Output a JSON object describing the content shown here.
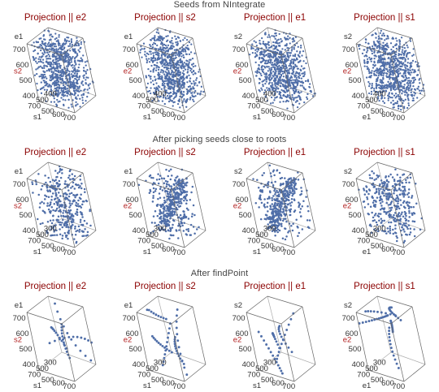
{
  "colors": {
    "panel_title": "#8b0000",
    "axis_label_red": "#b22222",
    "axis_label_dark": "#333333",
    "points": "#4f6ea8",
    "box_edge": "#666666",
    "row_title": "#444444"
  },
  "chart_data": [
    {
      "type": "scatter",
      "row_title": "Seeds from NIntegrate",
      "panels": [
        {
          "title": "Projection || e2",
          "vertical_label": "e1",
          "depth_label": "s2",
          "front_label": "s1",
          "ticks_vertical": [
            "400",
            "500",
            "600",
            "700"
          ],
          "ticks_front": [
            "400",
            "500",
            "600",
            "700"
          ],
          "ticks_depth": [
            "400",
            "500",
            "700"
          ],
          "distribution": "dense-cloud"
        },
        {
          "title": "Projection || s2",
          "vertical_label": "e1",
          "depth_label": "e2",
          "front_label": "s1",
          "ticks_vertical": [
            "400",
            "500",
            "600",
            "700"
          ],
          "ticks_front": [
            "400",
            "500",
            "600",
            "700"
          ],
          "ticks_depth": [
            "400",
            "500",
            "700"
          ],
          "distribution": "dense-cloud"
        },
        {
          "title": "Projection || e1",
          "vertical_label": "s2",
          "depth_label": "e2",
          "front_label": "s1",
          "ticks_vertical": [
            "400",
            "500",
            "600",
            "700"
          ],
          "ticks_front": [
            "400",
            "500",
            "600",
            "700"
          ],
          "ticks_depth": [
            "400",
            "500",
            "700"
          ],
          "distribution": "dense-cloud"
        },
        {
          "title": "Projection || s1",
          "vertical_label": "s2",
          "depth_label": "e2",
          "front_label": "e1",
          "ticks_vertical": [
            "400",
            "500",
            "600",
            "700"
          ],
          "ticks_front": [
            "400",
            "500",
            "600",
            "700"
          ],
          "ticks_depth": [
            "400",
            "500",
            "700"
          ],
          "distribution": "dense-cloud"
        }
      ]
    },
    {
      "type": "scatter",
      "row_title": "After picking seeds close to roots",
      "panels": [
        {
          "title": "Projection || e2",
          "vertical_label": "e1",
          "depth_label": "s2",
          "front_label": "s1",
          "ticks_vertical": [
            "400",
            "500",
            "600",
            "700"
          ],
          "ticks_front": [
            "400",
            "500",
            "600",
            "700"
          ],
          "ticks_depth": [
            "300",
            "500",
            "700"
          ],
          "distribution": "sparse-cloud"
        },
        {
          "title": "Projection || s2",
          "vertical_label": "e1",
          "depth_label": "e2",
          "front_label": "s1",
          "ticks_vertical": [
            "400",
            "500",
            "600",
            "700"
          ],
          "ticks_front": [
            "400",
            "500",
            "600",
            "700"
          ],
          "ticks_depth": [
            "300",
            "500",
            "700"
          ],
          "distribution": "diagonal-band"
        },
        {
          "title": "Projection || e1",
          "vertical_label": "s2",
          "depth_label": "e2",
          "front_label": "s1",
          "ticks_vertical": [
            "400",
            "500",
            "600",
            "700"
          ],
          "ticks_front": [
            "400",
            "500",
            "600",
            "700"
          ],
          "ticks_depth": [
            "300",
            "500",
            "700"
          ],
          "distribution": "diagonal-band"
        },
        {
          "title": "Projection || s1",
          "vertical_label": "s2",
          "depth_label": "e2",
          "front_label": "e1",
          "ticks_vertical": [
            "400",
            "500",
            "600",
            "700"
          ],
          "ticks_front": [
            "400",
            "500",
            "600",
            "700"
          ],
          "ticks_depth": [
            "300",
            "500",
            "700"
          ],
          "distribution": "sparse-cloud"
        }
      ]
    },
    {
      "type": "scatter",
      "row_title": "After findPoint",
      "panels": [
        {
          "title": "Projection || e2",
          "vertical_label": "e1",
          "depth_label": "s2",
          "front_label": "s1",
          "ticks_vertical": [
            "400",
            "500",
            "600",
            "700"
          ],
          "ticks_front": [
            "400",
            "500",
            "600",
            "700"
          ],
          "ticks_depth": [
            "300",
            "500",
            "700"
          ],
          "distribution": "curves"
        },
        {
          "title": "Projection || s2",
          "vertical_label": "e1",
          "depth_label": "e2",
          "front_label": "s1",
          "ticks_vertical": [
            "400",
            "500",
            "600",
            "700"
          ],
          "ticks_front": [
            "400",
            "500",
            "600",
            "700"
          ],
          "ticks_depth": [
            "300",
            "500",
            "700"
          ],
          "distribution": "curves"
        },
        {
          "title": "Projection || e1",
          "vertical_label": "s2",
          "depth_label": "e2",
          "front_label": "s1",
          "ticks_vertical": [
            "400",
            "500",
            "600",
            "700"
          ],
          "ticks_front": [
            "400",
            "500",
            "600",
            "700"
          ],
          "ticks_depth": [
            "300",
            "500",
            "700"
          ],
          "distribution": "curves"
        },
        {
          "title": "Projection || s1",
          "vertical_label": "s2",
          "depth_label": "e2",
          "front_label": "e1",
          "ticks_vertical": [
            "400",
            "500",
            "600",
            "700"
          ],
          "ticks_front": [
            "400",
            "500",
            "600",
            "700"
          ],
          "ticks_depth": [
            "300",
            "500",
            "700"
          ],
          "distribution": "curves"
        }
      ]
    }
  ]
}
